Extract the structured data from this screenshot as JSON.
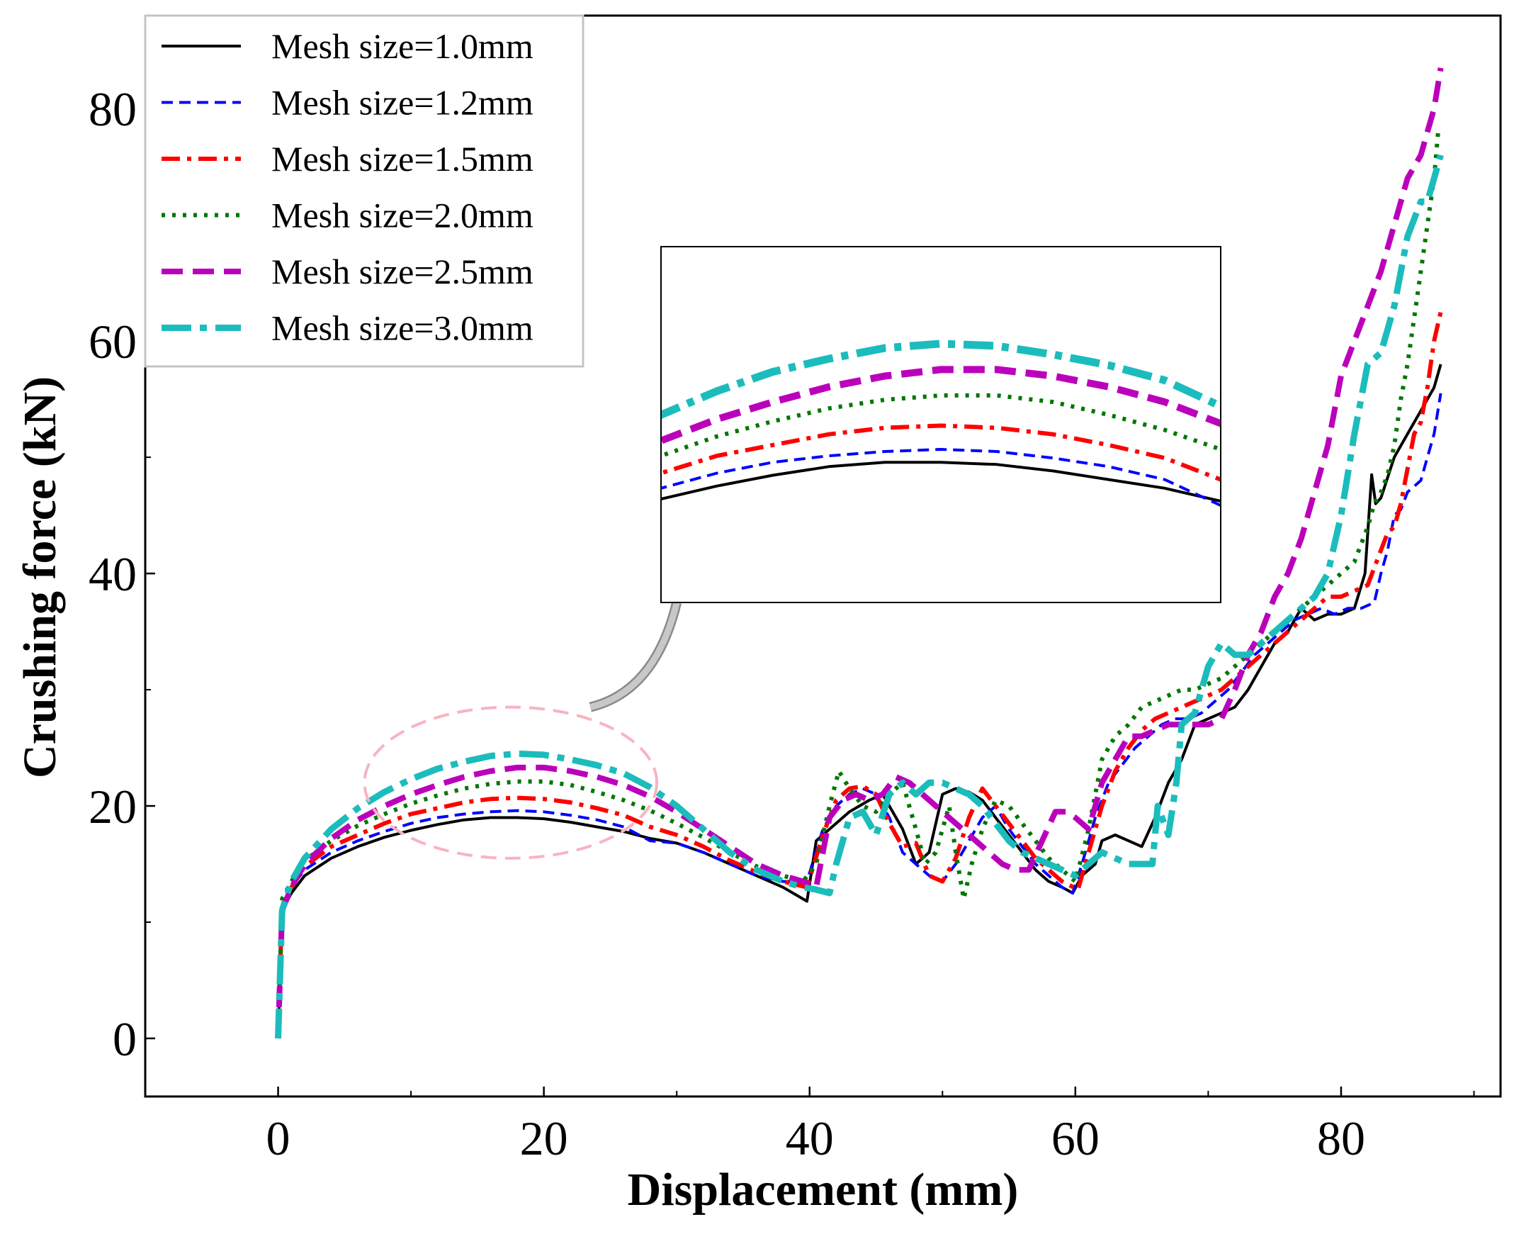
{
  "chart_data": {
    "type": "line",
    "title": "",
    "xlabel": "Displacement (mm)",
    "ylabel": "Crushing force (kN)",
    "xlim": [
      -10,
      92
    ],
    "ylim": [
      -5,
      88
    ],
    "xticks": [
      0,
      20,
      40,
      60,
      80
    ],
    "xtick_labels": [
      "0",
      "20",
      "40",
      "60",
      "80"
    ],
    "xminor": [
      10,
      30,
      50,
      70,
      90
    ],
    "yticks": [
      0,
      20,
      40,
      60,
      80
    ],
    "ytick_labels": [
      "0",
      "20",
      "40",
      "60",
      "80"
    ],
    "yminor": [
      10,
      30,
      50,
      70
    ],
    "legend_position": "top-left",
    "series": [
      {
        "name": "Mesh size=1.0mm",
        "color": "#000000",
        "style": "solid",
        "x": [
          0,
          0.3,
          1,
          2,
          4,
          6,
          8,
          10,
          12,
          14,
          16,
          18,
          20,
          22,
          24,
          26,
          28,
          30,
          32,
          34,
          36,
          38,
          39.8,
          40.5,
          41.5,
          43,
          44.5,
          45.5,
          46,
          47,
          48,
          49,
          50,
          51,
          52,
          53,
          54,
          55,
          56,
          57,
          58,
          59,
          59.8,
          60.5,
          61.5,
          62,
          63,
          64,
          65,
          66,
          67,
          68,
          69,
          70,
          71,
          72,
          73,
          74,
          75,
          76,
          77,
          78,
          79,
          80,
          81,
          81.8,
          82.3,
          82.6,
          83,
          84,
          85,
          86,
          87,
          87.5
        ],
        "y": [
          0,
          11,
          12.5,
          14,
          15.5,
          16.5,
          17.3,
          17.9,
          18.4,
          18.8,
          19,
          19,
          18.9,
          18.6,
          18.2,
          17.8,
          17.2,
          16.8,
          16,
          15,
          14,
          13,
          11.8,
          17,
          18,
          19.5,
          20.5,
          21,
          20,
          18,
          15,
          16,
          21,
          21.5,
          21.2,
          20.5,
          19,
          17.5,
          16,
          14.5,
          13.5,
          13,
          12.5,
          14,
          15,
          17,
          17.5,
          17,
          16.5,
          19,
          22,
          24,
          27,
          27.5,
          28,
          28.5,
          30,
          32,
          34,
          35,
          37,
          36,
          36.5,
          36.5,
          37,
          40,
          48.5,
          46,
          46.5,
          50,
          52,
          54,
          56,
          58
        ],
        "width": 4,
        "dash": ""
      },
      {
        "name": "Mesh size=1.2mm",
        "color": "#0000ff",
        "style": "dashed",
        "x": [
          0,
          0.3,
          1,
          2,
          4,
          6,
          8,
          10,
          12,
          14,
          16,
          18,
          20,
          22,
          24,
          26,
          28,
          30,
          32,
          34,
          36,
          38,
          39.8,
          41,
          42,
          43,
          44,
          45,
          46,
          47,
          48,
          49,
          50,
          51,
          52,
          53,
          54,
          55,
          56,
          57,
          58,
          59,
          59.8,
          60.5,
          61.5,
          62.5,
          63.5,
          64.5,
          65.5,
          66.5,
          67.5,
          68.5,
          69.5,
          70.5,
          71.5,
          72.5,
          73.5,
          74.5,
          75.5,
          76.5,
          77.5,
          78.5,
          79.5,
          80.5,
          81.5,
          82.5,
          83,
          83.5,
          84,
          84.5,
          85,
          85.5,
          86,
          86.5,
          87,
          87.5
        ],
        "y": [
          0,
          11.5,
          13,
          14.5,
          16,
          17,
          17.8,
          18.5,
          19,
          19.3,
          19.5,
          19.6,
          19.5,
          19.2,
          18.8,
          18.2,
          17,
          16.8,
          16,
          15,
          14,
          13.5,
          13.5,
          18,
          20,
          21,
          21.5,
          21,
          19,
          16,
          15,
          14,
          13.5,
          15,
          17,
          19,
          20,
          18,
          16.5,
          15,
          14,
          13,
          12.5,
          15,
          19,
          22,
          23.5,
          25,
          26,
          27,
          27.5,
          27.5,
          28,
          29,
          30,
          31.5,
          33,
          34,
          35,
          36,
          36.5,
          37,
          36.5,
          37,
          37,
          37.5,
          40,
          42,
          45,
          45.5,
          47,
          47.5,
          48,
          50,
          52,
          55.5
        ],
        "width": 4,
        "dash": "16 9"
      },
      {
        "name": "Mesh size=1.5mm",
        "color": "#ff0000",
        "style": "dashdot",
        "x": [
          0,
          0.3,
          1,
          2,
          4,
          6,
          8,
          10,
          12,
          14,
          16,
          18,
          20,
          22,
          24,
          26,
          28,
          30,
          32,
          34,
          36,
          38,
          39.8,
          41,
          42,
          43,
          44,
          45,
          46,
          47,
          48,
          49,
          50,
          51,
          52,
          53,
          54,
          55,
          56,
          57,
          58,
          59,
          60.2,
          61,
          62,
          63,
          64,
          65,
          66,
          67,
          68,
          69,
          70,
          71,
          72,
          73,
          74,
          75,
          76,
          77,
          78,
          79,
          80,
          81,
          82,
          83,
          83.5,
          84,
          84.5,
          85,
          85.5,
          86,
          86.5,
          87,
          87.5
        ],
        "y": [
          0,
          11.5,
          13,
          14.8,
          16.5,
          17.5,
          18.5,
          19.3,
          19.8,
          20.3,
          20.6,
          20.7,
          20.6,
          20.3,
          19.8,
          19.2,
          18.2,
          17.5,
          16.5,
          15.3,
          14.3,
          13.5,
          13,
          17.5,
          20.5,
          21.5,
          21.7,
          21,
          18.5,
          16.5,
          16.8,
          14,
          13.5,
          15.5,
          19,
          21.5,
          20,
          18.5,
          17,
          15.5,
          14.5,
          13.5,
          12.8,
          16,
          20,
          23,
          25,
          26.5,
          27.5,
          28,
          28.5,
          29,
          29.5,
          30,
          31,
          32,
          33,
          34,
          35,
          36,
          37,
          38,
          38,
          38.5,
          39,
          42,
          43.5,
          44,
          46,
          49,
          52,
          53,
          56,
          60,
          62.5
        ],
        "width": 6,
        "dash": "26 10 6 10"
      },
      {
        "name": "Mesh size=2.0mm",
        "color": "#007700",
        "style": "dotted",
        "x": [
          0,
          0.3,
          1,
          2,
          4,
          6,
          8,
          10,
          12,
          14,
          16,
          18,
          20,
          22,
          24,
          26,
          28,
          30,
          32,
          34,
          36,
          38,
          39.5,
          40.5,
          41.5,
          42.2,
          43,
          44,
          45,
          46,
          47,
          48,
          48.7,
          49.5,
          50.5,
          51,
          51.6,
          52.2,
          53,
          54,
          55,
          56,
          57,
          58,
          59,
          60,
          61,
          62,
          63,
          64,
          65,
          66,
          67,
          68,
          69,
          70,
          71,
          72,
          73,
          74,
          75,
          76,
          77,
          78,
          79,
          80,
          81,
          82,
          82.5,
          83,
          83.5,
          84,
          84.5,
          85,
          85.5,
          86,
          86.5,
          87,
          87.3
        ],
        "y": [
          0,
          12,
          13.5,
          15.3,
          17,
          18.3,
          19.3,
          20.2,
          20.9,
          21.5,
          21.9,
          22.1,
          22.1,
          21.8,
          21.2,
          20.5,
          19.6,
          18.5,
          17.3,
          16,
          14.8,
          14,
          13.5,
          15,
          20,
          23,
          21.5,
          20,
          19.5,
          21,
          22,
          18,
          15,
          16,
          20,
          16,
          12,
          15,
          18,
          20.5,
          20,
          18.5,
          17,
          15.5,
          14.5,
          13.5,
          18,
          24,
          26,
          27,
          28.5,
          29,
          29.5,
          30,
          30,
          30.5,
          31,
          32,
          33,
          34,
          35,
          36,
          37,
          38,
          39,
          40,
          41,
          44,
          46,
          47,
          48.5,
          51,
          55,
          58,
          62,
          66,
          70,
          74,
          78
        ],
        "width": 6,
        "dash": "5 10"
      },
      {
        "name": "Mesh size=2.5mm",
        "color": "#bb00bb",
        "style": "dashed",
        "x": [
          0,
          0.3,
          1,
          2,
          4,
          6,
          8,
          10,
          12,
          14,
          16,
          18,
          20,
          22,
          24,
          26,
          28,
          30,
          32,
          34,
          36,
          38,
          39.5,
          40.5,
          41.5,
          42.5,
          43.5,
          44.5,
          45.5,
          46.5,
          47.5,
          48.5,
          49.5,
          50.5,
          51.5,
          52.5,
          53.5,
          54.5,
          55.5,
          56.5,
          57.5,
          58.5,
          59.3,
          60,
          61,
          62,
          63,
          64,
          65,
          66,
          67,
          68,
          69,
          70,
          71,
          72,
          73,
          74,
          75,
          76,
          77,
          78,
          79,
          80,
          81,
          82,
          83,
          84,
          85,
          86,
          86.5,
          87,
          87.5
        ],
        "y": [
          0,
          11,
          13,
          15,
          17.2,
          18.8,
          20,
          21,
          21.8,
          22.5,
          23,
          23.3,
          23.3,
          23,
          22.5,
          21.8,
          20.8,
          19.5,
          18,
          16.5,
          15,
          14,
          13.5,
          13,
          19,
          20.5,
          21,
          20.5,
          21,
          22.5,
          22,
          21,
          20,
          19,
          18,
          17,
          16,
          15,
          14.5,
          14.5,
          17,
          19.5,
          19.5,
          19,
          18,
          22,
          24,
          26,
          26,
          26.5,
          27,
          27,
          27,
          27,
          27.5,
          30,
          33,
          35,
          38,
          40,
          43,
          47,
          51,
          57,
          60,
          63,
          66,
          70,
          74,
          76,
          78,
          80,
          83.5
        ],
        "width": 8,
        "dash": "30 14"
      },
      {
        "name": "Mesh size=3.0mm",
        "color": "#1cbcbc",
        "style": "dashdot",
        "x": [
          0,
          0.3,
          1,
          2,
          4,
          6,
          8,
          10,
          12,
          14,
          16,
          18,
          20,
          22,
          24,
          26,
          28,
          30,
          32,
          34,
          36,
          38,
          39.5,
          40.5,
          41.5,
          42,
          43,
          44,
          45,
          46,
          47,
          48,
          49,
          50,
          51,
          52,
          53,
          54,
          55,
          56,
          57,
          58,
          59,
          60,
          61,
          62,
          63,
          64,
          65,
          65.8,
          66.2,
          67,
          67.6,
          68,
          69,
          70,
          71,
          72,
          73,
          74,
          75,
          76,
          77,
          78,
          79,
          80,
          81,
          82,
          83,
          84,
          85,
          86,
          86.5,
          87,
          87.5
        ],
        "y": [
          0,
          11,
          13.5,
          15.5,
          18,
          19.8,
          21.2,
          22.3,
          23.2,
          23.8,
          24.3,
          24.5,
          24.4,
          24,
          23.5,
          22.8,
          21.6,
          20,
          18,
          16,
          14.5,
          13.5,
          13,
          12.8,
          12.5,
          15,
          19,
          19.5,
          17.5,
          21,
          22,
          21,
          22,
          22,
          21.5,
          21,
          20,
          18.5,
          17,
          16,
          15.5,
          15,
          14.5,
          14,
          15,
          16,
          15.5,
          15,
          15,
          15,
          20,
          17.5,
          22,
          27,
          28,
          32,
          34,
          33,
          33,
          34,
          35,
          36,
          37,
          38,
          40,
          45,
          52,
          58,
          59,
          63,
          69,
          72,
          72,
          74,
          76
        ]
      }
    ],
    "annotations": [
      {
        "type": "ellipse",
        "center": [
          17.5,
          22
        ],
        "rx_data": 11,
        "ry_data": 6.5,
        "color": "#f7b4c1"
      },
      {
        "type": "arrow",
        "from": [
          23.5,
          28.5
        ],
        "to": [
          30,
          37.5
        ],
        "color": "#aaaaaa"
      },
      {
        "type": "inset",
        "description_none": ""
      }
    ]
  }
}
